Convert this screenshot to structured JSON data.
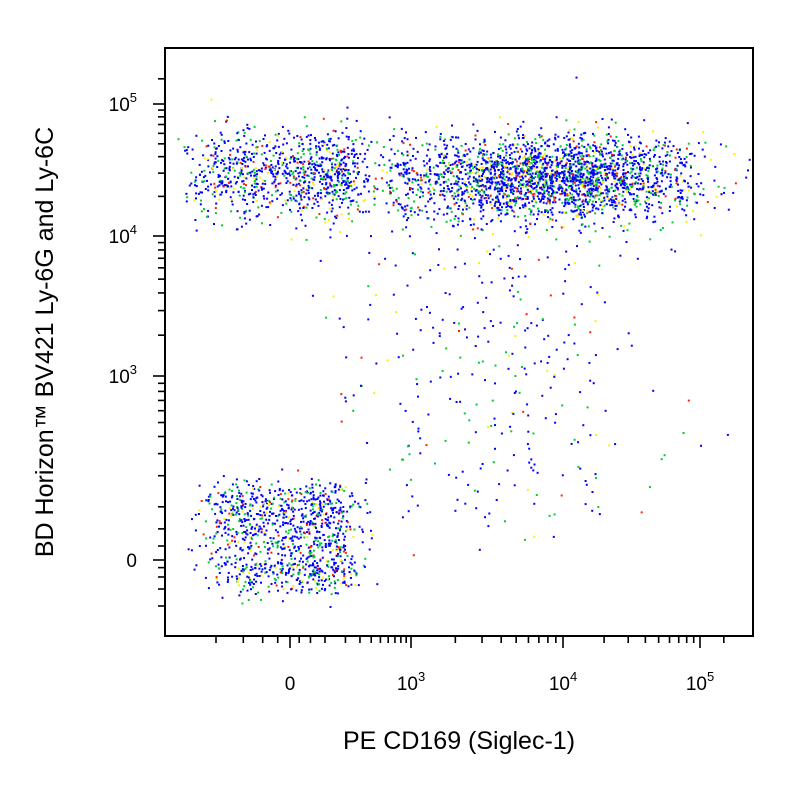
{
  "chart_data": {
    "type": "scatter",
    "subtype": "flow-cytometry-density-dot-plot",
    "title": "",
    "xlabel": "PE CD169 (Siglec-1)",
    "ylabel": "BD Horizon™ BV421 Ly-6G and Ly-6C",
    "x_scale": "biexponential",
    "y_scale": "biexponential",
    "xlim": [
      -200,
      150000
    ],
    "ylim": [
      -200,
      150000
    ],
    "x_ticks": [
      {
        "value": 0,
        "base": "0",
        "exp": ""
      },
      {
        "value": 1000,
        "base": "10",
        "exp": "3"
      },
      {
        "value": 10000,
        "base": "10",
        "exp": "4"
      },
      {
        "value": 100000,
        "base": "10",
        "exp": "5"
      }
    ],
    "y_ticks": [
      {
        "value": 0,
        "base": "0",
        "exp": ""
      },
      {
        "value": 1000,
        "base": "10",
        "exp": "3"
      },
      {
        "value": 10000,
        "base": "10",
        "exp": "4"
      },
      {
        "value": 100000,
        "base": "10",
        "exp": "5"
      }
    ],
    "grid": false,
    "legend": "none",
    "density_colors": [
      "#0000ff",
      "#00cc33",
      "#ffee00",
      "#ff2200"
    ],
    "populations": [
      {
        "label": "",
        "x_center": 0,
        "y_center": 30000,
        "x_spread": 150,
        "y_spread_log": 0.18,
        "count": 900
      },
      {
        "label": "",
        "x_center": 8000,
        "y_center": 28000,
        "x_spread_log": 0.55,
        "y_spread_log": 0.16,
        "count": 2600
      },
      {
        "label": "",
        "x_center": 0,
        "y_center": 40,
        "x_spread": 120,
        "y_spread": 70,
        "count": 1100
      },
      {
        "label": "",
        "x_center": 4000,
        "y_center": 1500,
        "x_spread_log": 0.6,
        "y_spread_log": 0.7,
        "count": 350
      }
    ]
  }
}
